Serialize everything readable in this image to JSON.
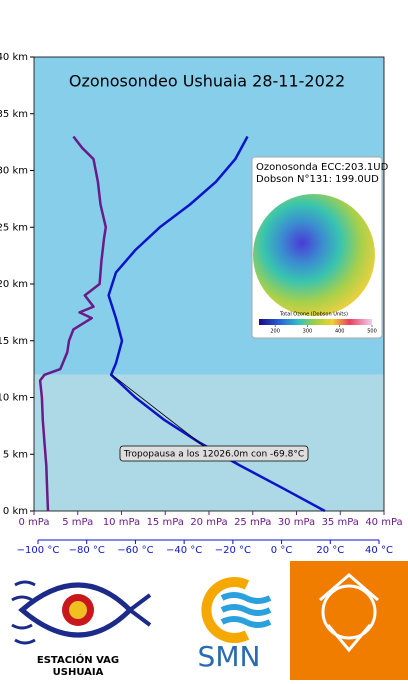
{
  "chart_data": {
    "type": "line",
    "title": "Ozonosondeo Ushuaia 28-11-2022",
    "ylim": [
      0,
      40
    ],
    "yticks": [
      {
        "value": 0,
        "label": "0 km"
      },
      {
        "value": 5,
        "label": "5 km"
      },
      {
        "value": 10,
        "label": "10 km"
      },
      {
        "value": 15,
        "label": "15 km"
      },
      {
        "value": 20,
        "label": "20 km"
      },
      {
        "value": 25,
        "label": "25 km"
      },
      {
        "value": 30,
        "label": "30 km"
      },
      {
        "value": 35,
        "label": "35 km"
      },
      {
        "value": 40,
        "label": "40 km"
      }
    ],
    "xlim": [
      0,
      40
    ],
    "xticks": [
      {
        "value": 0,
        "label": "0 mPa"
      },
      {
        "value": 5,
        "label": "5 mPa"
      },
      {
        "value": 10,
        "label": "10 mPa"
      },
      {
        "value": 15,
        "label": "15 mPa"
      },
      {
        "value": 20,
        "label": "20 mPa"
      },
      {
        "value": 25,
        "label": "25 mPa"
      },
      {
        "value": 30,
        "label": "30 mPa"
      },
      {
        "value": 35,
        "label": "35 mPa"
      },
      {
        "value": 40,
        "label": "40 mPa"
      }
    ],
    "x2lim": [
      -100,
      40
    ],
    "x2ticks": [
      {
        "value": -100,
        "label": "−100 °C"
      },
      {
        "value": -80,
        "label": "−80 °C"
      },
      {
        "value": -60,
        "label": "−60 °C"
      },
      {
        "value": -40,
        "label": "−40 °C"
      },
      {
        "value": -20,
        "label": "−20 °C"
      },
      {
        "value": 0,
        "label": "0 °C"
      },
      {
        "value": 20,
        "label": "20 °C"
      },
      {
        "value": 40,
        "label": "40 °C"
      }
    ],
    "series": [
      {
        "color": "#6a1b8a",
        "axis": "x",
        "x": [
          1.6,
          1.5,
          1.4,
          1.2,
          1.0,
          0.9,
          0.7,
          1.2,
          3.0,
          3.8,
          4.0,
          4.5,
          6.6,
          5.2,
          6.8,
          5.8,
          7.5,
          7.7,
          8.0,
          8.2,
          7.6,
          7.3,
          6.8,
          5.5,
          4.5
        ],
        "y": [
          0,
          2,
          4,
          6,
          8,
          10,
          11.5,
          12,
          12.5,
          14,
          15,
          16,
          17,
          17.5,
          18,
          19,
          20,
          22,
          24,
          25,
          27,
          29,
          31,
          32,
          33
        ]
      },
      {
        "color": "#0b14c8",
        "axis": "x2",
        "x": [
          17.8,
          0.6,
          -17,
          -33.5,
          -48,
          -60,
          -70,
          -68,
          -65.5,
          -68,
          -71,
          -68,
          -60,
          -50,
          -37.6,
          -27,
          -19,
          -14
        ],
        "y": [
          0,
          2,
          4,
          6,
          8,
          10,
          12,
          13,
          15,
          17,
          19,
          21,
          23,
          25,
          27,
          29,
          31,
          33
        ]
      }
    ],
    "annotation": {
      "text": "Tropopausa a los 12026.0m con -69.8°C",
      "x": -69.8,
      "y": 12.026
    },
    "inset": {
      "lines": [
        "Ozonosonda ECC:203.1UD",
        "Dobson N°131:    199.0UD"
      ],
      "colorbar_title": "Total Ozone  (Dobson Units)",
      "colorbar_ticks": [
        200,
        300,
        400,
        500
      ],
      "colorbar_lim": [
        150,
        500
      ]
    }
  },
  "logos": {
    "vag": [
      "ESTACIÓN VAG",
      "USHUAIA"
    ],
    "smn": "SMN"
  }
}
